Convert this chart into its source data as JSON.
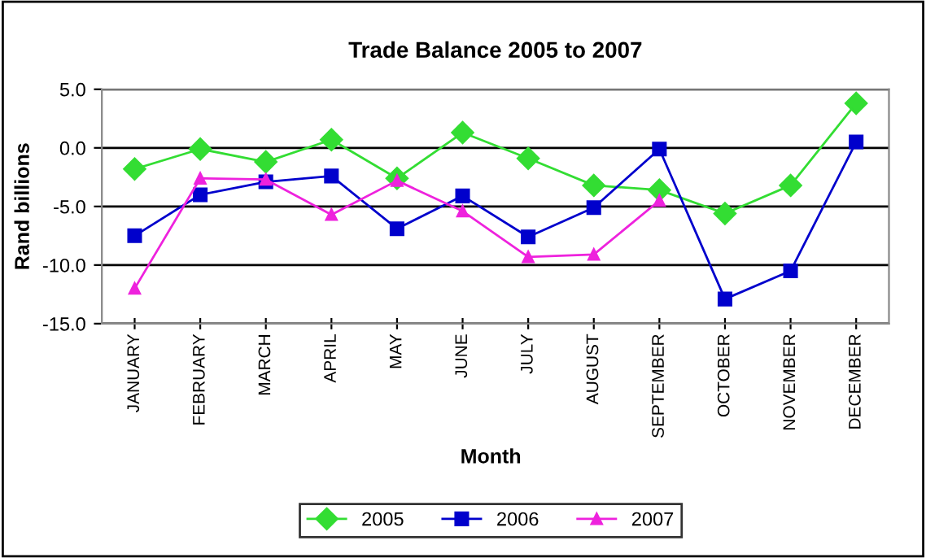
{
  "chart_data": {
    "type": "line",
    "title": "Trade Balance 2005 to 2007",
    "xlabel": "Month",
    "ylabel": "Rand billions",
    "categories": [
      "JANUARY",
      "FEBRUARY",
      "MARCH",
      "APRIL",
      "MAY",
      "JUNE",
      "JULY",
      "AUGUST",
      "SEPTEMBER",
      "OCTOBER",
      "NOVEMBER",
      "DECEMBER"
    ],
    "series": [
      {
        "name": "2005",
        "color": "#33dd33",
        "marker": "diamond",
        "values": [
          -1.8,
          -0.1,
          -1.2,
          0.7,
          -2.6,
          1.3,
          -0.9,
          -3.2,
          -3.6,
          -5.6,
          -3.2,
          3.8
        ]
      },
      {
        "name": "2006",
        "color": "#0000cc",
        "marker": "square",
        "values": [
          -7.5,
          -4.0,
          -2.9,
          -2.4,
          -6.9,
          -4.1,
          -7.6,
          -5.1,
          -0.1,
          -12.9,
          -10.5,
          0.5
        ]
      },
      {
        "name": "2007",
        "color": "#ee22dd",
        "marker": "triangle",
        "values": [
          -12.0,
          -2.6,
          -2.7,
          -5.7,
          -2.8,
          -5.4,
          -9.3,
          -9.1,
          -4.5,
          null,
          null,
          null
        ]
      }
    ],
    "ylim": [
      -15,
      5
    ],
    "yticks": [
      {
        "value": 5,
        "label": "5.0"
      },
      {
        "value": 0,
        "label": "0.0"
      },
      {
        "value": -5,
        "label": "-5.0"
      },
      {
        "value": -10,
        "label": "-10.0"
      },
      {
        "value": -15,
        "label": "-15.0"
      }
    ],
    "grid": "y",
    "legend": "bottom",
    "line_style": "solid"
  }
}
